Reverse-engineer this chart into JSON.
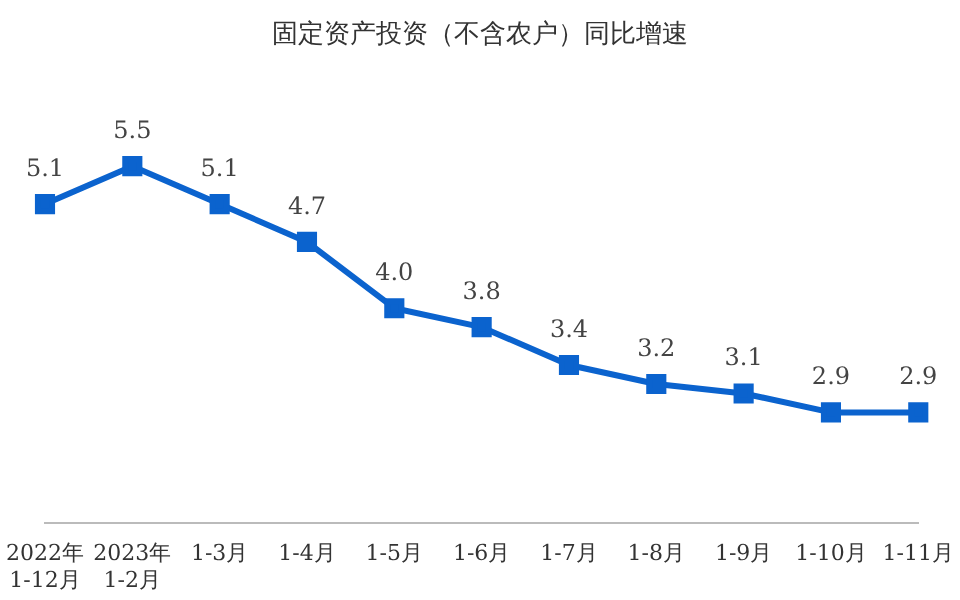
{
  "chart_data": {
    "type": "line",
    "title": "固定资产投资（不含农户）同比增速",
    "categories": [
      "2022年 1-12月",
      "2023年 1-2月",
      "1-3月",
      "1-4月",
      "1-5月",
      "1-6月",
      "1-7月",
      "1-8月",
      "1-9月",
      "1-10月",
      "1-11月"
    ],
    "series": [
      {
        "color": "#0b63ce",
        "values": [
          5.1,
          5.5,
          5.1,
          4.7,
          4.0,
          3.8,
          3.4,
          3.2,
          3.1,
          2.9,
          2.9
        ],
        "value_labels": [
          "5.1",
          "5.5",
          "5.1",
          "4.7",
          "4.0",
          "3.8",
          "3.4",
          "3.2",
          "3.1",
          "2.9",
          "2.9"
        ]
      }
    ],
    "marker": "square",
    "line_style": "solid",
    "grid": false,
    "legend": false,
    "tick_labels": "x"
  }
}
